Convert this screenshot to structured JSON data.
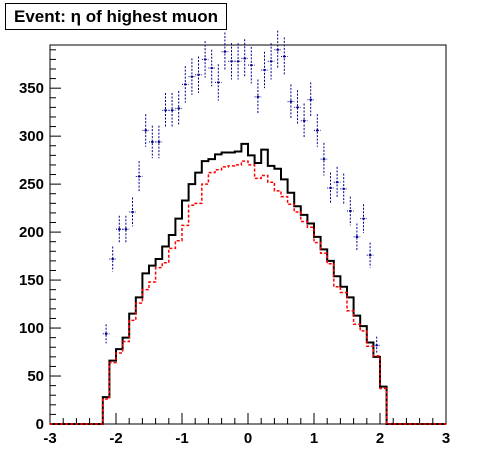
{
  "chart_data": {
    "type": "histogram",
    "title": "Event: η of highest muon",
    "xlim": [
      -3,
      3
    ],
    "ylim": [
      0,
      395
    ],
    "x_ticks": [
      "-3",
      "-2",
      "-1",
      "0",
      "1",
      "2",
      "3"
    ],
    "y_ticks": [
      "0",
      "50",
      "100",
      "150",
      "200",
      "250",
      "300",
      "350"
    ],
    "bin_edges": [
      -2.2,
      -2.1,
      -2.0,
      -1.9,
      -1.8,
      -1.7,
      -1.6,
      -1.5,
      -1.4,
      -1.3,
      -1.2,
      -1.1,
      -1.0,
      -0.9,
      -0.8,
      -0.7,
      -0.6,
      -0.5,
      -0.4,
      -0.3,
      -0.2,
      -0.1,
      0.0,
      0.1,
      0.2,
      0.3,
      0.4,
      0.5,
      0.6,
      0.7,
      0.8,
      0.9,
      1.0,
      1.1,
      1.2,
      1.3,
      1.4,
      1.5,
      1.6,
      1.7,
      1.8,
      1.9,
      2.0,
      2.1,
      2.2
    ],
    "series": [
      {
        "style": "solid-histogram",
        "color": "#000000",
        "values": [
          28,
          66,
          78,
          90,
          115,
          132,
          157,
          165,
          172,
          185,
          197,
          214,
          233,
          250,
          262,
          274,
          276,
          281,
          283,
          283,
          284,
          292,
          280,
          272,
          286,
          269,
          266,
          255,
          241,
          227,
          218,
          209,
          195,
          182,
          170,
          154,
          143,
          132,
          113,
          102,
          85,
          70,
          39,
          0
        ]
      },
      {
        "style": "dashed-histogram",
        "color": "#ff0000",
        "values": [
          26,
          64,
          74,
          86,
          108,
          126,
          140,
          148,
          163,
          168,
          183,
          191,
          207,
          228,
          230,
          250,
          262,
          265,
          268,
          269,
          270,
          274,
          270,
          256,
          259,
          252,
          243,
          237,
          229,
          221,
          211,
          205,
          189,
          178,
          167,
          143,
          137,
          118,
          104,
          97,
          81,
          71,
          37,
          0
        ]
      },
      {
        "style": "points-with-errors",
        "color": "#00008b",
        "values": [
          94,
          172,
          203,
          203,
          221,
          258,
          306,
          294,
          294,
          327,
          327,
          329,
          354,
          362,
          364,
          380,
          371,
          356,
          388,
          378,
          378,
          381,
          374,
          341,
          369,
          378,
          390,
          383,
          336,
          330,
          316,
          338,
          306,
          276,
          246,
          252,
          245,
          222,
          195,
          214,
          176,
          82
        ],
        "yerr": [
          10,
          13,
          14,
          14,
          15,
          16,
          17,
          17,
          17,
          18,
          18,
          18,
          19,
          19,
          19,
          19,
          19,
          19,
          20,
          19,
          19,
          20,
          19,
          18,
          19,
          19,
          20,
          20,
          18,
          18,
          18,
          18,
          17,
          17,
          16,
          16,
          16,
          15,
          14,
          15,
          13,
          9
        ]
      }
    ]
  }
}
